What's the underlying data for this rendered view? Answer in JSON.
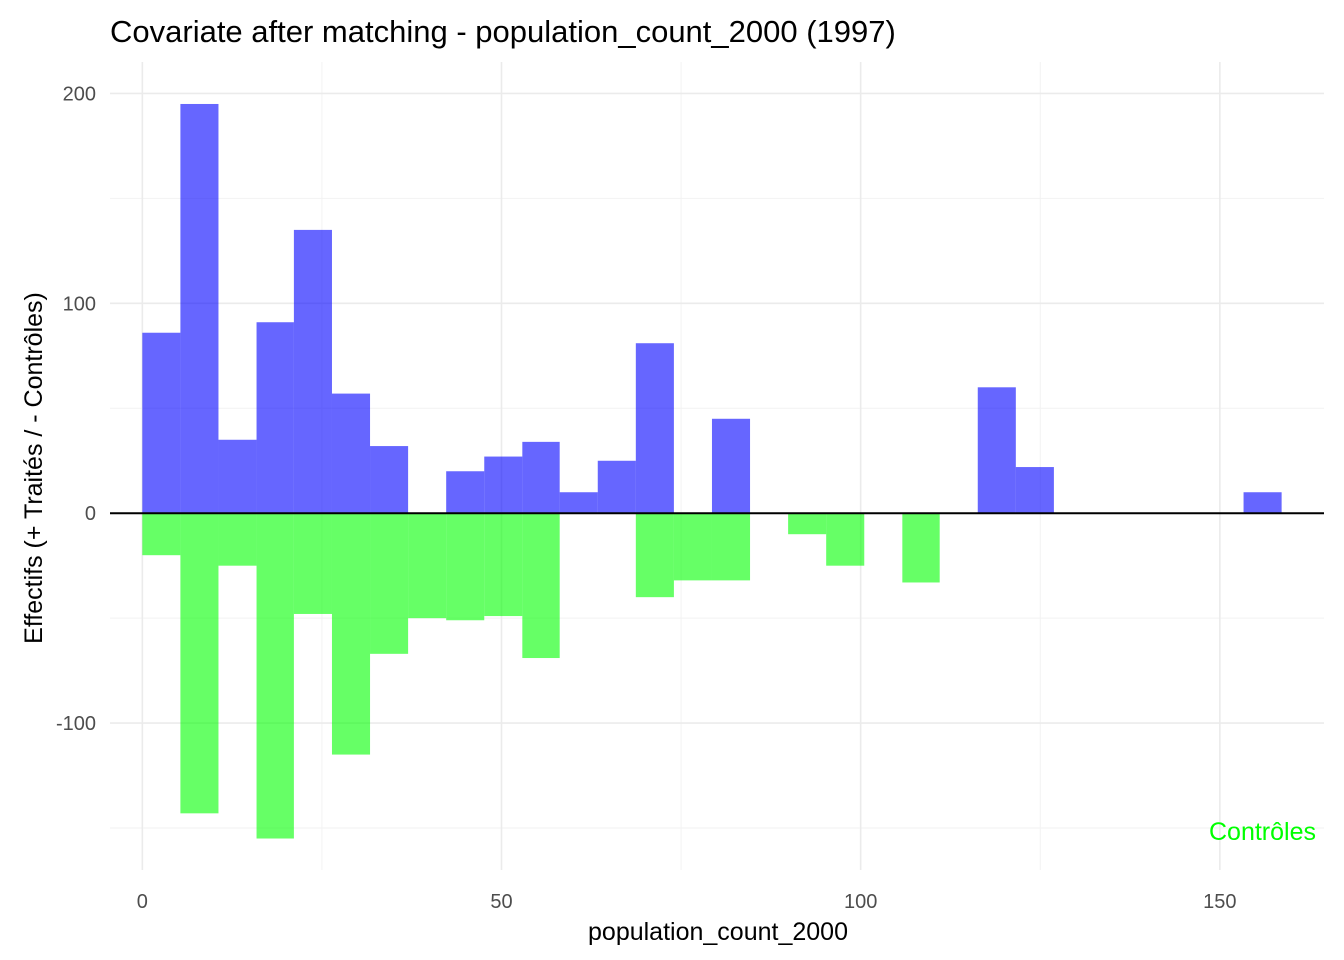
{
  "chart_data": {
    "type": "bar",
    "title": "Covariate after matching - population_count_2000 (1997)",
    "xlabel": "population_count_2000",
    "ylabel": "Effectifs (+ Traités / - Contrôles)",
    "xlim": [
      -4.5,
      164.5
    ],
    "ylim": [
      -170,
      215
    ],
    "x_ticks": [
      0,
      50,
      100,
      150
    ],
    "y_ticks": [
      -100,
      0,
      100,
      200
    ],
    "x_tick_labels": [
      "0",
      "50",
      "100",
      "150"
    ],
    "y_tick_labels": [
      "-100",
      "0",
      "100",
      "200"
    ],
    "grid": true,
    "zero_line": true,
    "annotation": {
      "text": "Contrôles",
      "color": "#00ff00",
      "placement": "bottom-right"
    },
    "series": [
      {
        "key": "treated",
        "color": "#0000ff",
        "opacity": 0.6,
        "bins": [
          {
            "x0": 0.0,
            "x1": 5.3,
            "value": 86
          },
          {
            "x0": 5.3,
            "x1": 10.6,
            "value": 195
          },
          {
            "x0": 10.6,
            "x1": 15.9,
            "value": 35
          },
          {
            "x0": 15.9,
            "x1": 21.1,
            "value": 91
          },
          {
            "x0": 21.1,
            "x1": 26.4,
            "value": 135
          },
          {
            "x0": 26.4,
            "x1": 31.7,
            "value": 57
          },
          {
            "x0": 31.7,
            "x1": 37.0,
            "value": 32
          },
          {
            "x0": 42.3,
            "x1": 47.6,
            "value": 20
          },
          {
            "x0": 47.6,
            "x1": 52.9,
            "value": 27
          },
          {
            "x0": 52.9,
            "x1": 58.1,
            "value": 34
          },
          {
            "x0": 58.1,
            "x1": 63.4,
            "value": 10
          },
          {
            "x0": 63.4,
            "x1": 68.7,
            "value": 25
          },
          {
            "x0": 68.7,
            "x1": 74.0,
            "value": 81
          },
          {
            "x0": 79.3,
            "x1": 84.6,
            "value": 45
          },
          {
            "x0": 116.3,
            "x1": 121.6,
            "value": 60
          },
          {
            "x0": 121.6,
            "x1": 126.9,
            "value": 22
          },
          {
            "x0": 153.3,
            "x1": 158.6,
            "value": 10
          }
        ]
      },
      {
        "key": "control",
        "color": "#00ff00",
        "opacity": 0.6,
        "bins": [
          {
            "x0": 0.0,
            "x1": 5.3,
            "value": -20
          },
          {
            "x0": 5.3,
            "x1": 10.6,
            "value": -143
          },
          {
            "x0": 10.6,
            "x1": 15.9,
            "value": -25
          },
          {
            "x0": 15.9,
            "x1": 21.1,
            "value": -155
          },
          {
            "x0": 21.1,
            "x1": 26.4,
            "value": -48
          },
          {
            "x0": 26.4,
            "x1": 31.7,
            "value": -115
          },
          {
            "x0": 31.7,
            "x1": 37.0,
            "value": -67
          },
          {
            "x0": 37.0,
            "x1": 42.3,
            "value": -50
          },
          {
            "x0": 42.3,
            "x1": 47.6,
            "value": -51
          },
          {
            "x0": 47.6,
            "x1": 52.9,
            "value": -49
          },
          {
            "x0": 52.9,
            "x1": 58.1,
            "value": -69
          },
          {
            "x0": 68.7,
            "x1": 74.0,
            "value": -40
          },
          {
            "x0": 74.0,
            "x1": 79.3,
            "value": -32
          },
          {
            "x0": 79.3,
            "x1": 84.6,
            "value": -32
          },
          {
            "x0": 89.9,
            "x1": 95.2,
            "value": -10
          },
          {
            "x0": 95.2,
            "x1": 100.5,
            "value": -25
          },
          {
            "x0": 105.8,
            "x1": 111.0,
            "value": -33
          }
        ]
      }
    ]
  }
}
